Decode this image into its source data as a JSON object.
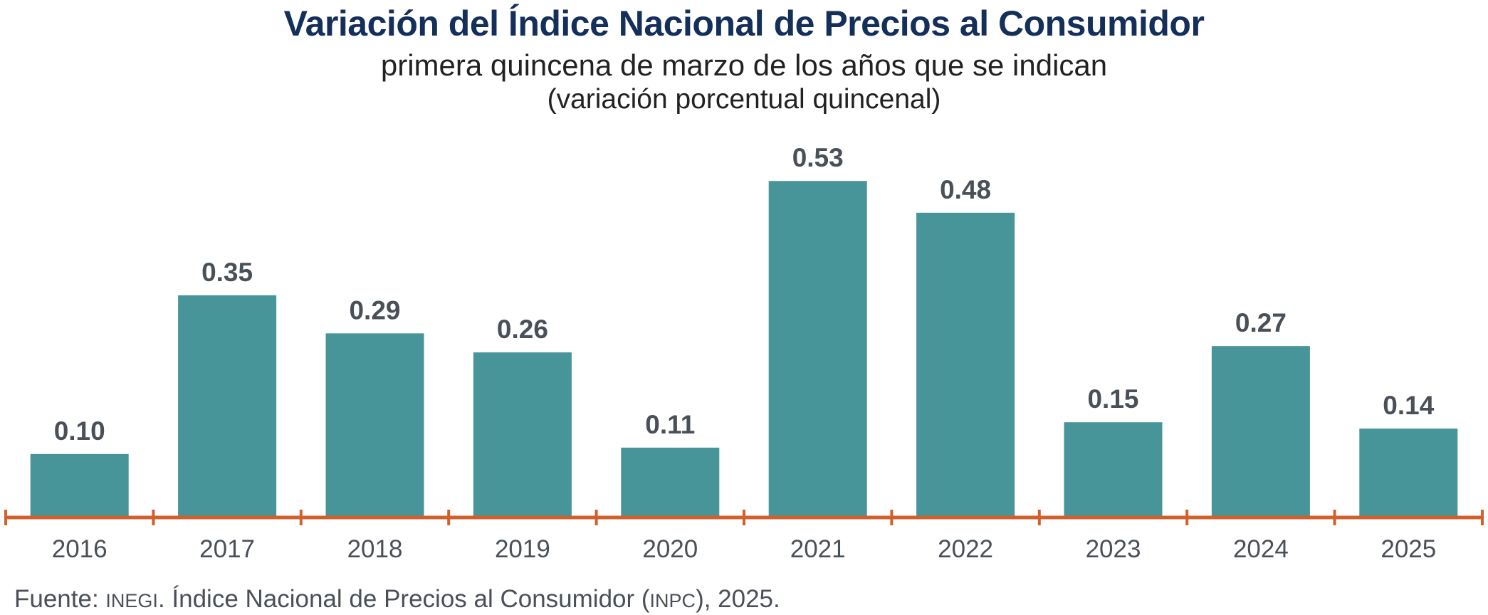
{
  "chart_data": {
    "type": "bar",
    "title": "Variación del Índice Nacional de Precios al Consumidor",
    "subtitle": "primera quincena de marzo de los años que se indican",
    "unit_label": "(variación porcentual quincenal)",
    "xlabel": "",
    "ylabel": "",
    "categories": [
      "2016",
      "2017",
      "2018",
      "2019",
      "2020",
      "2021",
      "2022",
      "2023",
      "2024",
      "2025"
    ],
    "values": [
      0.1,
      0.35,
      0.29,
      0.26,
      0.11,
      0.53,
      0.48,
      0.15,
      0.27,
      0.14
    ],
    "value_labels": [
      "0.10",
      "0.35",
      "0.29",
      "0.26",
      "0.11",
      "0.53",
      "0.48",
      "0.15",
      "0.27",
      "0.14"
    ],
    "ylim": [
      0,
      0.6
    ],
    "grid": false,
    "legend": "none",
    "colors": {
      "bar": "#479599",
      "axis": "#d0602e",
      "title": "#14305a",
      "labels": "#4a5058"
    }
  },
  "footer": {
    "prefix": "Fuente: ",
    "org": "INEGI",
    "middle": ". Índice Nacional de Precios al Consumidor ",
    "abbr_open": "(",
    "abbr": "INPC",
    "suffix": "), 2025."
  }
}
